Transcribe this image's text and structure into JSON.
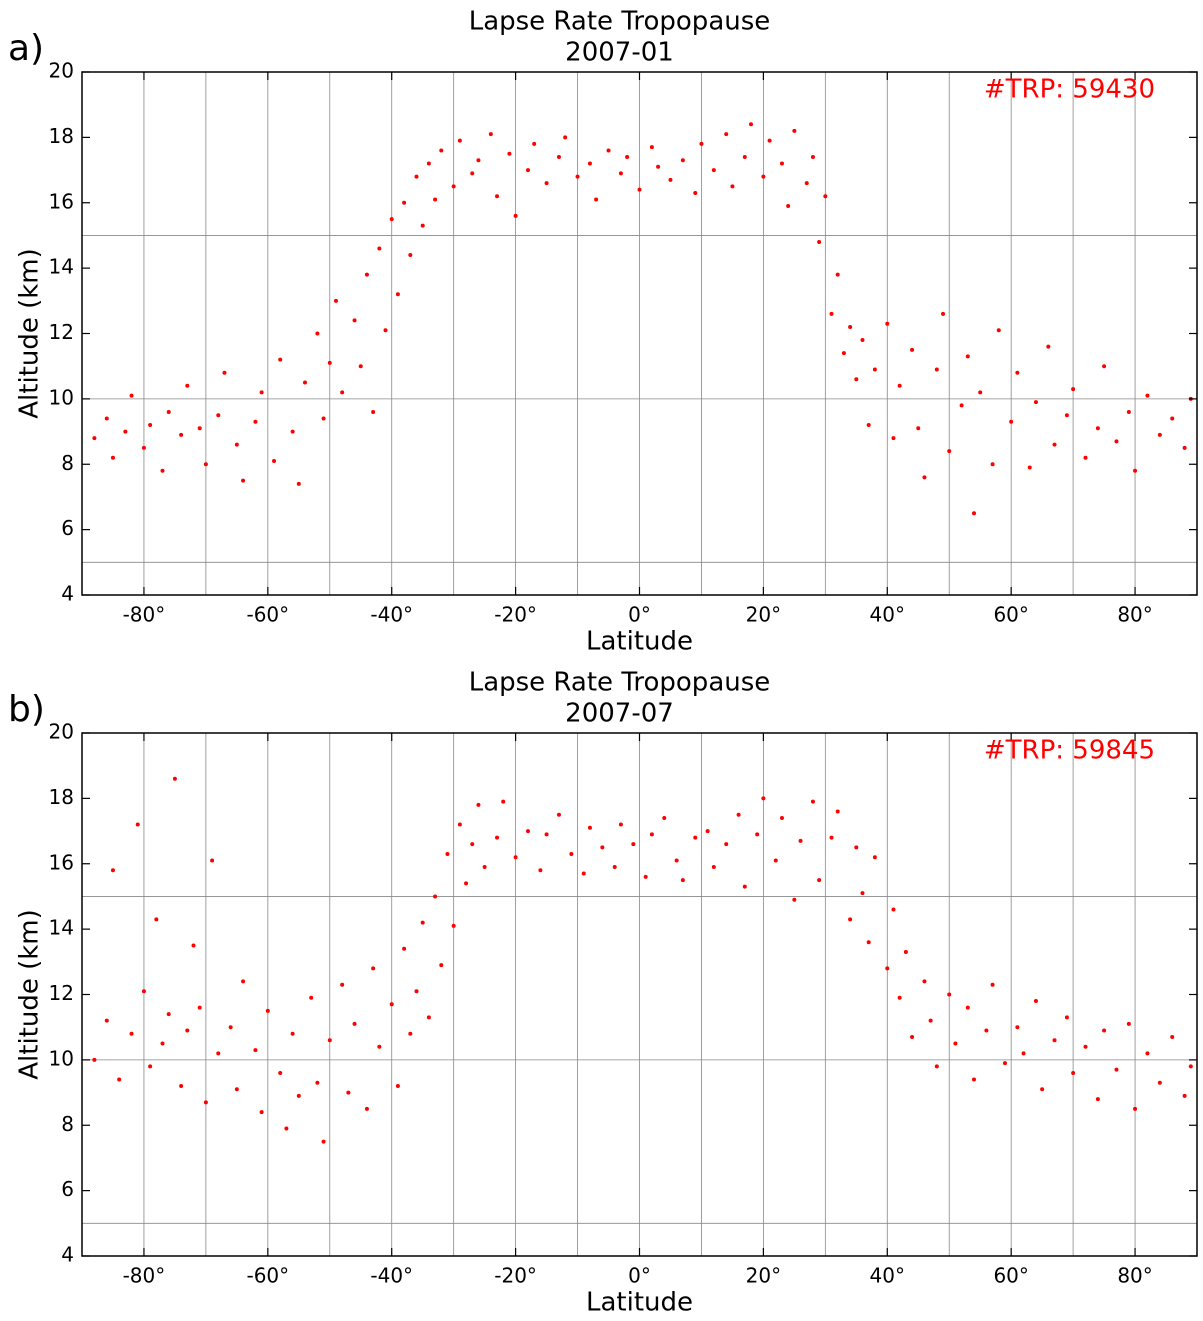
{
  "chart_data": [
    {
      "type": "scatter",
      "panel_label": "a)",
      "title": "Lapse Rate Tropopause",
      "subtitle": "2007-01",
      "annotation": "#TRP: 59430",
      "x_label": "Latitude",
      "y_label": "Altitude (km)",
      "color": "#ff0000",
      "grid": true,
      "xlim": [
        -90,
        90
      ],
      "ylim": [
        4,
        20
      ],
      "xticks": [
        {
          "value": -80,
          "label": "-80°"
        },
        {
          "value": -60,
          "label": "-60°"
        },
        {
          "value": -40,
          "label": "-40°"
        },
        {
          "value": -20,
          "label": "-20°"
        },
        {
          "value": 0,
          "label": "0°"
        },
        {
          "value": 20,
          "label": "20°"
        },
        {
          "value": 40,
          "label": "40°"
        },
        {
          "value": 60,
          "label": "60°"
        },
        {
          "value": 80,
          "label": "80°"
        }
      ],
      "yticks": [
        4,
        6,
        8,
        10,
        12,
        14,
        16,
        18,
        20
      ],
      "xgrid": [
        -80,
        -70,
        -60,
        -50,
        -40,
        -30,
        -20,
        -10,
        0,
        10,
        20,
        30,
        40,
        50,
        60,
        70,
        80
      ],
      "ygrid": [
        5,
        10,
        15
      ],
      "x": [
        -88,
        -86,
        -85,
        -83,
        -82,
        -80,
        -79,
        -77,
        -76,
        -74,
        -73,
        -71,
        -70,
        -68,
        -67,
        -65,
        -64,
        -62,
        -61,
        -59,
        -58,
        -56,
        -55,
        -54,
        -52,
        -51,
        -50,
        -49,
        -48,
        -46,
        -45,
        -44,
        -43,
        -42,
        -41,
        -40,
        -39,
        -38,
        -37,
        -36,
        -35,
        -34,
        -33,
        -32,
        -30,
        -29,
        -27,
        -26,
        -24,
        -23,
        -21,
        -20,
        -18,
        -17,
        -15,
        -13,
        -12,
        -10,
        -8,
        -7,
        -5,
        -3,
        -2,
        0,
        2,
        3,
        5,
        7,
        9,
        10,
        12,
        14,
        15,
        17,
        18,
        20,
        21,
        23,
        24,
        25,
        27,
        28,
        29,
        30,
        31,
        32,
        33,
        34,
        35,
        36,
        37,
        38,
        40,
        41,
        42,
        44,
        45,
        46,
        48,
        49,
        50,
        52,
        53,
        54,
        55,
        57,
        58,
        60,
        61,
        63,
        64,
        66,
        67,
        69,
        70,
        72,
        74,
        75,
        77,
        79,
        80,
        82,
        84,
        86,
        88,
        89
      ],
      "values": [
        8.8,
        9.4,
        8.2,
        9.0,
        10.1,
        8.5,
        9.2,
        7.8,
        9.6,
        8.9,
        10.4,
        9.1,
        8.0,
        9.5,
        10.8,
        8.6,
        7.5,
        9.3,
        10.2,
        8.1,
        11.2,
        9.0,
        7.4,
        10.5,
        12.0,
        9.4,
        11.1,
        13.0,
        10.2,
        12.4,
        11.0,
        13.8,
        9.6,
        14.6,
        12.1,
        15.5,
        13.2,
        16.0,
        14.4,
        16.8,
        15.3,
        17.2,
        16.1,
        17.6,
        16.5,
        17.9,
        16.9,
        17.3,
        18.1,
        16.2,
        17.5,
        15.6,
        17.0,
        17.8,
        16.6,
        17.4,
        18.0,
        16.8,
        17.2,
        16.1,
        17.6,
        16.9,
        17.4,
        16.4,
        17.7,
        17.1,
        16.7,
        17.3,
        16.3,
        17.8,
        17.0,
        18.1,
        16.5,
        17.4,
        18.4,
        16.8,
        17.9,
        17.2,
        15.9,
        18.2,
        16.6,
        17.4,
        14.8,
        16.2,
        12.6,
        13.8,
        11.4,
        12.2,
        10.6,
        11.8,
        9.2,
        10.9,
        12.3,
        8.8,
        10.4,
        11.5,
        9.1,
        7.6,
        10.9,
        12.6,
        8.4,
        9.8,
        11.3,
        6.5,
        10.2,
        8.0,
        12.1,
        9.3,
        10.8,
        7.9,
        9.9,
        11.6,
        8.6,
        9.5,
        10.3,
        8.2,
        9.1,
        11.0,
        8.7,
        9.6,
        7.8,
        10.1,
        8.9,
        9.4,
        8.5,
        10.0
      ]
    },
    {
      "type": "scatter",
      "panel_label": "b)",
      "title": "Lapse Rate Tropopause",
      "subtitle": "2007-07",
      "annotation": "#TRP: 59845",
      "x_label": "Latitude",
      "y_label": "Altitude (km)",
      "color": "#ff0000",
      "grid": true,
      "xlim": [
        -90,
        90
      ],
      "ylim": [
        4,
        20
      ],
      "xticks": [
        {
          "value": -80,
          "label": "-80°"
        },
        {
          "value": -60,
          "label": "-60°"
        },
        {
          "value": -40,
          "label": "-40°"
        },
        {
          "value": -20,
          "label": "-20°"
        },
        {
          "value": 0,
          "label": "0°"
        },
        {
          "value": 20,
          "label": "20°"
        },
        {
          "value": 40,
          "label": "40°"
        },
        {
          "value": 60,
          "label": "60°"
        },
        {
          "value": 80,
          "label": "80°"
        }
      ],
      "yticks": [
        4,
        6,
        8,
        10,
        12,
        14,
        16,
        18,
        20
      ],
      "xgrid": [
        -80,
        -70,
        -60,
        -50,
        -40,
        -30,
        -20,
        -10,
        0,
        10,
        20,
        30,
        40,
        50,
        60,
        70,
        80
      ],
      "ygrid": [
        5,
        10,
        15
      ],
      "x": [
        -88,
        -86,
        -85,
        -84,
        -82,
        -81,
        -80,
        -79,
        -78,
        -77,
        -76,
        -75,
        -74,
        -73,
        -72,
        -71,
        -70,
        -69,
        -68,
        -66,
        -65,
        -64,
        -62,
        -61,
        -60,
        -58,
        -57,
        -56,
        -55,
        -53,
        -52,
        -51,
        -50,
        -48,
        -47,
        -46,
        -44,
        -43,
        -42,
        -40,
        -39,
        -38,
        -37,
        -36,
        -35,
        -34,
        -33,
        -32,
        -31,
        -30,
        -29,
        -28,
        -27,
        -26,
        -25,
        -23,
        -22,
        -20,
        -18,
        -16,
        -15,
        -13,
        -11,
        -9,
        -8,
        -6,
        -4,
        -3,
        -1,
        1,
        2,
        4,
        6,
        7,
        9,
        11,
        12,
        14,
        16,
        17,
        19,
        20,
        22,
        23,
        25,
        26,
        28,
        29,
        31,
        32,
        34,
        35,
        36,
        37,
        38,
        40,
        41,
        42,
        43,
        44,
        46,
        47,
        48,
        50,
        51,
        53,
        54,
        56,
        57,
        59,
        61,
        62,
        64,
        65,
        67,
        69,
        70,
        72,
        74,
        75,
        77,
        79,
        80,
        82,
        84,
        86,
        88,
        89
      ],
      "values": [
        10.0,
        11.2,
        15.8,
        9.4,
        10.8,
        17.2,
        12.1,
        9.8,
        14.3,
        10.5,
        11.4,
        18.6,
        9.2,
        10.9,
        13.5,
        11.6,
        8.7,
        16.1,
        10.2,
        11.0,
        9.1,
        12.4,
        10.3,
        8.4,
        11.5,
        9.6,
        7.9,
        10.8,
        8.9,
        11.9,
        9.3,
        7.5,
        10.6,
        12.3,
        9.0,
        11.1,
        8.5,
        12.8,
        10.4,
        11.7,
        9.2,
        13.4,
        10.8,
        12.1,
        14.2,
        11.3,
        15.0,
        12.9,
        16.3,
        14.1,
        17.2,
        15.4,
        16.6,
        17.8,
        15.9,
        16.8,
        17.9,
        16.2,
        17.0,
        15.8,
        16.9,
        17.5,
        16.3,
        15.7,
        17.1,
        16.5,
        15.9,
        17.2,
        16.6,
        15.6,
        16.9,
        17.4,
        16.1,
        15.5,
        16.8,
        17.0,
        15.9,
        16.6,
        17.5,
        15.3,
        16.9,
        18.0,
        16.1,
        17.4,
        14.9,
        16.7,
        17.9,
        15.5,
        16.8,
        17.6,
        14.3,
        16.5,
        15.1,
        13.6,
        16.2,
        12.8,
        14.6,
        11.9,
        13.3,
        10.7,
        12.4,
        11.2,
        9.8,
        12.0,
        10.5,
        11.6,
        9.4,
        10.9,
        12.3,
        9.9,
        11.0,
        10.2,
        11.8,
        9.1,
        10.6,
        11.3,
        9.6,
        10.4,
        8.8,
        10.9,
        9.7,
        11.1,
        8.5,
        10.2,
        9.3,
        10.7,
        8.9,
        9.8
      ]
    }
  ]
}
